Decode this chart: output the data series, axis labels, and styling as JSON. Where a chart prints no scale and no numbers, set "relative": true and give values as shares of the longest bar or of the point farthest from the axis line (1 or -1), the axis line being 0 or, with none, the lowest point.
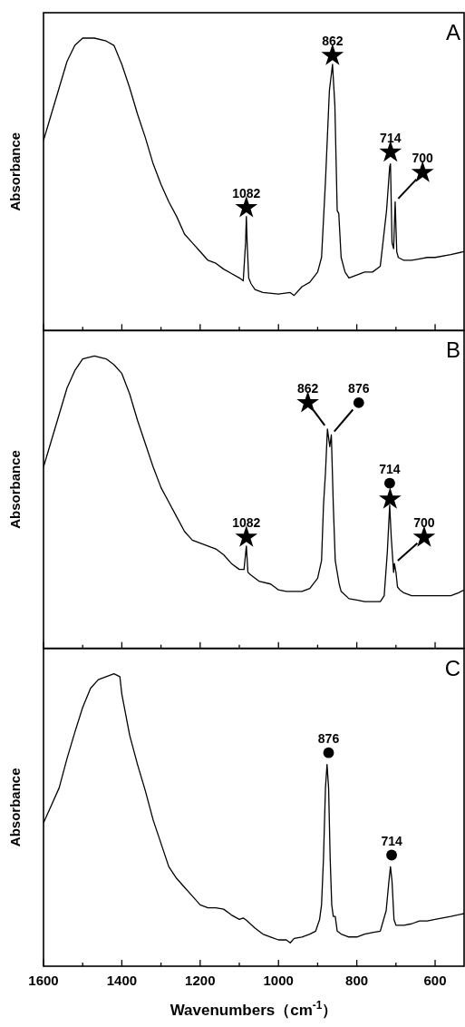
{
  "chart_data": [
    {
      "type": "line",
      "title": "A",
      "ylabel": "Absorbance",
      "relative": true,
      "tick_labels": false,
      "xlim": [
        1600,
        526
      ],
      "xticks": [
        1600,
        {
          "value": 1500,
          "label": null
        },
        1400,
        {
          "value": 1300,
          "label": null
        },
        1200,
        {
          "value": 1100,
          "label": null
        },
        1000,
        {
          "value": 900,
          "label": null
        },
        800,
        {
          "value": 700,
          "label": null
        },
        600
      ],
      "series": [
        {
          "color": "#000000",
          "x": [
            1600,
            1580,
            1560,
            1540,
            1520,
            1500,
            1470,
            1440,
            1420,
            1400,
            1380,
            1360,
            1340,
            1320,
            1300,
            1280,
            1260,
            1240,
            1220,
            1200,
            1180,
            1160,
            1140,
            1120,
            1100,
            1090,
            1084,
            1082,
            1080,
            1076,
            1070,
            1060,
            1040,
            1000,
            970,
            960,
            940,
            920,
            900,
            890,
            880,
            870,
            862,
            856,
            850,
            846,
            840,
            830,
            820,
            800,
            780,
            760,
            740,
            724,
            716,
            714,
            710,
            706,
            702,
            698,
            694,
            680,
            660,
            640,
            620,
            600,
            560,
            526
          ],
          "values": [
            0.65,
            0.74,
            0.83,
            0.92,
            0.975,
            1.0,
            1.0,
            0.99,
            0.975,
            0.91,
            0.83,
            0.74,
            0.66,
            0.57,
            0.5,
            0.44,
            0.39,
            0.33,
            0.3,
            0.27,
            0.24,
            0.23,
            0.21,
            0.195,
            0.18,
            0.17,
            0.3,
            0.39,
            0.3,
            0.18,
            0.16,
            0.14,
            0.13,
            0.125,
            0.13,
            0.12,
            0.15,
            0.165,
            0.2,
            0.25,
            0.51,
            0.82,
            0.91,
            0.77,
            0.41,
            0.4,
            0.25,
            0.2,
            0.18,
            0.19,
            0.2,
            0.2,
            0.22,
            0.41,
            0.56,
            0.57,
            0.3,
            0.28,
            0.44,
            0.27,
            0.25,
            0.24,
            0.24,
            0.245,
            0.25,
            0.25,
            0.26,
            0.27
          ]
        },
        {
          "type": "scatter",
          "marker": "star",
          "color": "#000000",
          "x": [
            1082,
            862,
            714,
            632
          ],
          "values": [
            0.42,
            0.94,
            0.61,
            0.54
          ]
        }
      ],
      "annotations": [
        {
          "text": "1082",
          "x": 1082,
          "y": 0.42
        },
        {
          "text": "862",
          "x": 862,
          "y": 0.94
        },
        {
          "text": "714",
          "x": 714,
          "y": 0.61
        },
        {
          "text": "700",
          "x": 632,
          "y": 0.54
        }
      ]
    },
    {
      "type": "line",
      "title": "B",
      "ylabel": "Absorbance",
      "relative": true,
      "tick_labels": false,
      "xlim": [
        1600,
        526
      ],
      "xticks": [
        1600,
        {
          "value": 1500,
          "label": null
        },
        1400,
        {
          "value": 1300,
          "label": null
        },
        1200,
        {
          "value": 1100,
          "label": null
        },
        1000,
        {
          "value": 900,
          "label": null
        },
        800,
        {
          "value": 700,
          "label": null
        },
        600
      ],
      "series": [
        {
          "color": "#000000",
          "x": [
            1600,
            1580,
            1560,
            1540,
            1520,
            1500,
            1470,
            1440,
            1420,
            1400,
            1380,
            1360,
            1340,
            1320,
            1300,
            1280,
            1260,
            1240,
            1220,
            1200,
            1180,
            1160,
            1140,
            1120,
            1100,
            1088,
            1082,
            1078,
            1070,
            1050,
            1020,
            1000,
            980,
            960,
            940,
            920,
            900,
            890,
            885,
            880,
            875,
            869,
            865,
            860,
            855,
            850,
            845,
            840,
            820,
            800,
            780,
            760,
            740,
            730,
            722,
            716,
            712,
            706,
            704,
            700,
            696,
            690,
            680,
            660,
            640,
            620,
            600,
            580,
            560,
            540,
            526
          ],
          "values": [
            0.62,
            0.71,
            0.8,
            0.89,
            0.95,
            0.99,
            1.0,
            0.99,
            0.97,
            0.94,
            0.87,
            0.78,
            0.7,
            0.62,
            0.55,
            0.5,
            0.45,
            0.4,
            0.37,
            0.36,
            0.35,
            0.34,
            0.32,
            0.29,
            0.27,
            0.27,
            0.35,
            0.26,
            0.25,
            0.23,
            0.22,
            0.2,
            0.195,
            0.195,
            0.195,
            0.205,
            0.24,
            0.3,
            0.49,
            0.6,
            0.75,
            0.69,
            0.73,
            0.49,
            0.3,
            0.26,
            0.22,
            0.195,
            0.17,
            0.165,
            0.16,
            0.16,
            0.16,
            0.18,
            0.33,
            0.49,
            0.38,
            0.26,
            0.29,
            0.26,
            0.21,
            0.2,
            0.19,
            0.18,
            0.18,
            0.18,
            0.18,
            0.18,
            0.18,
            0.19,
            0.2
          ]
        },
        {
          "type": "scatter",
          "marker": "star",
          "color": "#000000",
          "x": [
            1082,
            925,
            715,
            628
          ],
          "values": [
            0.38,
            0.84,
            0.51,
            0.38
          ]
        },
        {
          "type": "scatter",
          "marker": "circle",
          "color": "#000000",
          "x": [
            795,
            716
          ],
          "values": [
            0.84,
            0.565
          ]
        }
      ],
      "annotations": [
        {
          "text": "1082",
          "x": 1082,
          "y": 0.38
        },
        {
          "text": "862",
          "x": 925,
          "y": 0.84
        },
        {
          "text": "876",
          "x": 795,
          "y": 0.84
        },
        {
          "text": "714",
          "x": 716,
          "y": 0.565
        },
        {
          "text": "700",
          "x": 628,
          "y": 0.38
        }
      ]
    },
    {
      "type": "line",
      "title": "C",
      "ylabel": "Absorbance",
      "xlabel": "Wavenumbers（cm$^{-1}$）",
      "relative": true,
      "tick_labels": "x",
      "xlim": [
        1600,
        526
      ],
      "xticks": [
        1600,
        {
          "value": 1500,
          "label": null
        },
        1400,
        {
          "value": 1300,
          "label": null
        },
        1200,
        {
          "value": 1100,
          "label": null
        },
        1000,
        {
          "value": 900,
          "label": null
        },
        800,
        {
          "value": 700,
          "label": null
        },
        600
      ],
      "series": [
        {
          "color": "#000000",
          "x": [
            1600,
            1580,
            1560,
            1540,
            1520,
            1500,
            1480,
            1460,
            1440,
            1420,
            1405,
            1400,
            1380,
            1360,
            1340,
            1320,
            1300,
            1280,
            1260,
            1240,
            1220,
            1200,
            1180,
            1160,
            1140,
            1120,
            1100,
            1090,
            1080,
            1060,
            1040,
            1020,
            1000,
            980,
            970,
            960,
            940,
            920,
            905,
            895,
            890,
            885,
            880,
            876,
            872,
            868,
            864,
            860,
            855,
            850,
            840,
            820,
            800,
            780,
            760,
            740,
            725,
            718,
            714,
            710,
            705,
            700,
            680,
            660,
            640,
            620,
            600,
            560,
            526
          ],
          "values": [
            0.49,
            0.55,
            0.61,
            0.71,
            0.8,
            0.885,
            0.95,
            0.98,
            0.99,
            1.0,
            0.99,
            0.93,
            0.79,
            0.69,
            0.6,
            0.5,
            0.42,
            0.34,
            0.3,
            0.27,
            0.24,
            0.21,
            0.2,
            0.2,
            0.195,
            0.175,
            0.16,
            0.165,
            0.155,
            0.13,
            0.11,
            0.1,
            0.09,
            0.09,
            0.08,
            0.095,
            0.1,
            0.11,
            0.12,
            0.16,
            0.21,
            0.37,
            0.61,
            0.69,
            0.61,
            0.37,
            0.21,
            0.17,
            0.17,
            0.12,
            0.11,
            0.1,
            0.1,
            0.11,
            0.115,
            0.12,
            0.19,
            0.29,
            0.34,
            0.29,
            0.16,
            0.14,
            0.14,
            0.145,
            0.155,
            0.155,
            0.16,
            0.17,
            0.18
          ]
        },
        {
          "type": "scatter",
          "marker": "circle",
          "color": "#000000",
          "x": [
            872,
            711
          ],
          "values": [
            0.73,
            0.38
          ]
        }
      ],
      "annotations": [
        {
          "text": "876",
          "x": 872,
          "y": 0.73
        },
        {
          "text": "714",
          "x": 711,
          "y": 0.38
        }
      ]
    }
  ]
}
